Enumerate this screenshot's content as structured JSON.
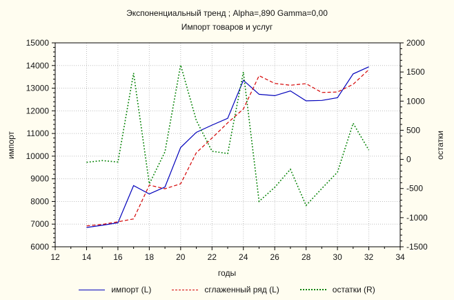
{
  "title_line1": "Экспоненциальный тренд ; Alpha=,890 Gamma=0,00",
  "title_line2": "Импорт товаров и услуг",
  "colors": {
    "background": "#FFFDF0",
    "plot_background": "#FFFFFF",
    "grid": "#BDBDBD",
    "axis": "#000000",
    "text": "#141414"
  },
  "chart_data": {
    "type": "line",
    "title": "Экспоненциальный тренд ; Alpha=,890 Gamma=0,00",
    "subtitle": "Импорт товаров и услуг",
    "xlabel": "годы",
    "ylabel_left": "импорт",
    "ylabel_right": "остатки",
    "xlim": [
      12,
      34
    ],
    "ylim_left": [
      6000,
      15000
    ],
    "ylim_right": [
      -1500,
      2000
    ],
    "x_ticks": [
      12,
      14,
      16,
      18,
      20,
      22,
      24,
      26,
      28,
      30,
      32,
      34
    ],
    "y_left_ticks": [
      6000,
      7000,
      8000,
      9000,
      10000,
      11000,
      12000,
      13000,
      14000,
      15000
    ],
    "y_right_ticks": [
      -1500,
      -1000,
      -500,
      0,
      500,
      1000,
      1500,
      2000
    ],
    "x_minor_step": 1,
    "y_left_minor_step": 200,
    "y_right_minor_step": 100,
    "grid": true,
    "legend_position": "bottom",
    "x": [
      14,
      15,
      16,
      17,
      18,
      19,
      20,
      21,
      22,
      23,
      24,
      25,
      26,
      27,
      28,
      29,
      30,
      31,
      32
    ],
    "series": [
      {
        "name": "импорт (L)",
        "axis": "left",
        "color": "#0000BB",
        "style": "solid",
        "values": [
          6850,
          6950,
          7060,
          8700,
          8330,
          8640,
          10380,
          11050,
          11370,
          11670,
          13350,
          12730,
          12670,
          12880,
          12440,
          12460,
          12580,
          13630,
          13940
        ]
      },
      {
        "name": "сглаженный ряд (L)",
        "axis": "left",
        "color": "#D40000",
        "style": "dashed",
        "values": [
          6920,
          6990,
          7100,
          7230,
          8720,
          8560,
          8780,
          10150,
          10800,
          11470,
          12080,
          13550,
          13210,
          13130,
          13200,
          12810,
          12830,
          13170,
          13820
        ]
      },
      {
        "name": "остатки (R)",
        "axis": "right",
        "color": "#008000",
        "style": "dotted",
        "values": [
          -50,
          -20,
          -45,
          1480,
          -420,
          130,
          1620,
          670,
          140,
          100,
          1500,
          -720,
          -480,
          -170,
          -790,
          -500,
          -220,
          620,
          160
        ]
      }
    ]
  }
}
